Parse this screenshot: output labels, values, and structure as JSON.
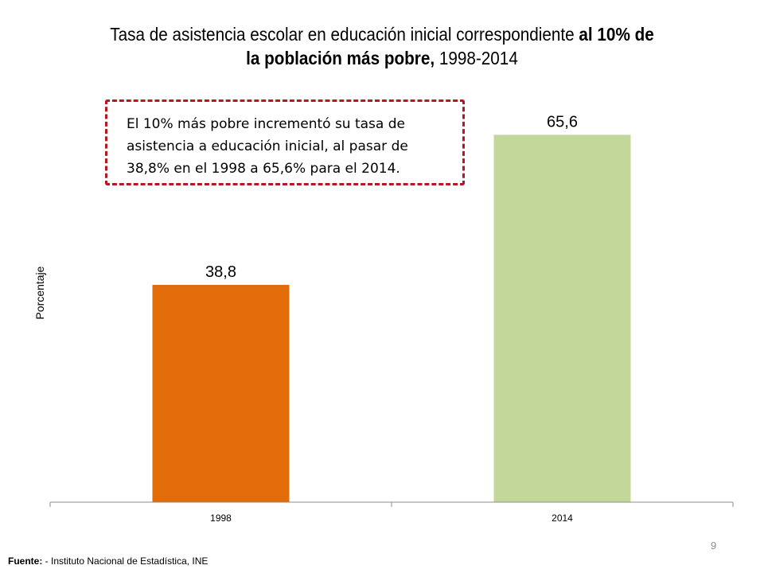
{
  "title": {
    "part1": "Tasa de asistencia escolar en educación inicial correspondiente ",
    "bold1": "al 10% de",
    "bold2": "la población más pobre,",
    "part2": " 1998-2014"
  },
  "callout": {
    "text": "El 10% más pobre incrementó su tasa de asistencia a educación inicial,  al pasar de 38,8% en el 1998 a 65,6%  para el 2014."
  },
  "page_number": "9",
  "source": {
    "label": "Fuente:",
    "text": " - Instituto  Nacional de Estadística, INE"
  },
  "chart_data": {
    "type": "bar",
    "categories": [
      "1998",
      "2014"
    ],
    "values": [
      38.8,
      65.6
    ],
    "value_labels": [
      "38,8",
      "65,6"
    ],
    "ylabel": "Porcentaje",
    "colors": [
      "#e36c0a",
      "#c4d79b"
    ],
    "grid": false,
    "ylim": [
      0,
      80
    ]
  }
}
